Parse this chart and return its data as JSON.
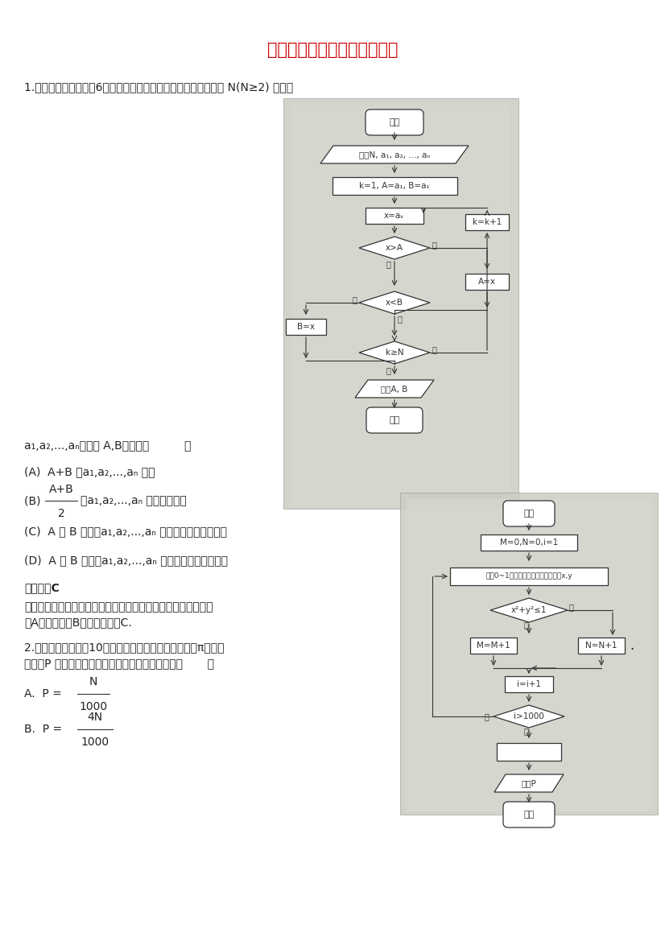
{
  "title": "高考真题分类汇编：程序框图",
  "title_color": "#cc0000",
  "bg_color": "#ffffff",
  "fc1_bg": "#d8d8d0",
  "fc2_bg": "#d8d8d0",
  "text_color": "#222222",
  "line_color": "#333333",
  "q1_line1": "1.【高考真题新课标理6】如果执行右边的程序框图，输入正整数 N(N≥2) 和实数",
  "q1_line2": "a₁,a₂,...,aₙ，输出 A,B，那么（          ）",
  "optA": "(A)  A+B 为a₁,a₂,...,aₙ 的和",
  "optC": "(C)  A 和 B 分别是a₁,a₂,...,aₙ 中最大的数和最小的数",
  "optD": "(D)  A 和 B 分别是a₁,a₂,...,aₙ 中最小的数和最大的数",
  "ans_label": "【答案】C",
  "exp1": "【解析】根据程序框图可知，这是一个数据大小比拟的程序，其",
  "exp2": "中A为最大值，B为最小值，选C.",
  "q2_line1": "2.【高考真题陕西理10】右图是用模拟方法估计圆周率π的程序",
  "q2_line2": "框图，P 表示估计结果，那么图中空白框内应填入（       ）",
  "optA2_label": "A.",
  "optB2_label": "B."
}
